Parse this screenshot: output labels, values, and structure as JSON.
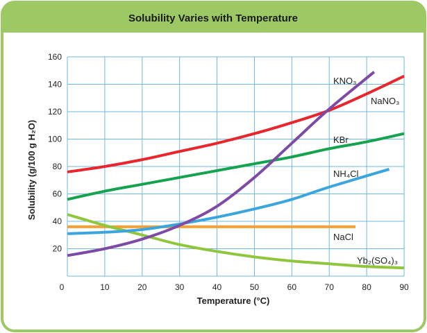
{
  "chart_data": {
    "type": "line",
    "title": "Solubility Varies with Temperature",
    "xlabel": "Temperature (°C)",
    "ylabel": "Solubility (g/100 g H₂O)",
    "xlim": [
      0,
      90
    ],
    "ylim": [
      0,
      160
    ],
    "x_ticks": [
      0,
      10,
      20,
      30,
      40,
      50,
      60,
      70,
      80,
      90
    ],
    "y_ticks": [
      20,
      40,
      60,
      80,
      100,
      120,
      140,
      160
    ],
    "grid": true,
    "series": [
      {
        "name": "NaNO₃",
        "color": "#e8262d",
        "x": [
          0,
          10,
          20,
          30,
          40,
          50,
          60,
          70,
          80,
          90
        ],
        "y": [
          76,
          80,
          85,
          91,
          97,
          104,
          112,
          121,
          133,
          146
        ]
      },
      {
        "name": "KBr",
        "color": "#16a34f",
        "x": [
          0,
          10,
          20,
          30,
          40,
          50,
          60,
          70,
          80,
          90
        ],
        "y": [
          56,
          62,
          67,
          72,
          77,
          82,
          87,
          93,
          98,
          104
        ]
      },
      {
        "name": "KNO₃",
        "color": "#7d4aa5",
        "x": [
          0,
          10,
          20,
          30,
          40,
          50,
          60,
          70,
          82
        ],
        "y": [
          15,
          20,
          27,
          37,
          51,
          72,
          97,
          122,
          149
        ]
      },
      {
        "name": "NH₄Cl",
        "color": "#3aa6dd",
        "x": [
          0,
          10,
          20,
          30,
          40,
          50,
          60,
          70,
          86
        ],
        "y": [
          31,
          32,
          34,
          38,
          43,
          49,
          56,
          65,
          78
        ]
      },
      {
        "name": "NaCl",
        "color": "#f7a036",
        "x": [
          0,
          77
        ],
        "y": [
          36,
          36
        ]
      },
      {
        "name": "Yb₂(SO₄)₃",
        "color": "#8fc63c",
        "x": [
          0,
          10,
          20,
          30,
          40,
          50,
          60,
          70,
          80,
          90
        ],
        "y": [
          45,
          37,
          30,
          23,
          18,
          14,
          11,
          9,
          7,
          6
        ]
      }
    ]
  },
  "colors": {
    "frame_border": "#9cc964",
    "title_bar": "#9cc964",
    "grid": "#6fb8de",
    "plot_background": "#ffffff"
  }
}
